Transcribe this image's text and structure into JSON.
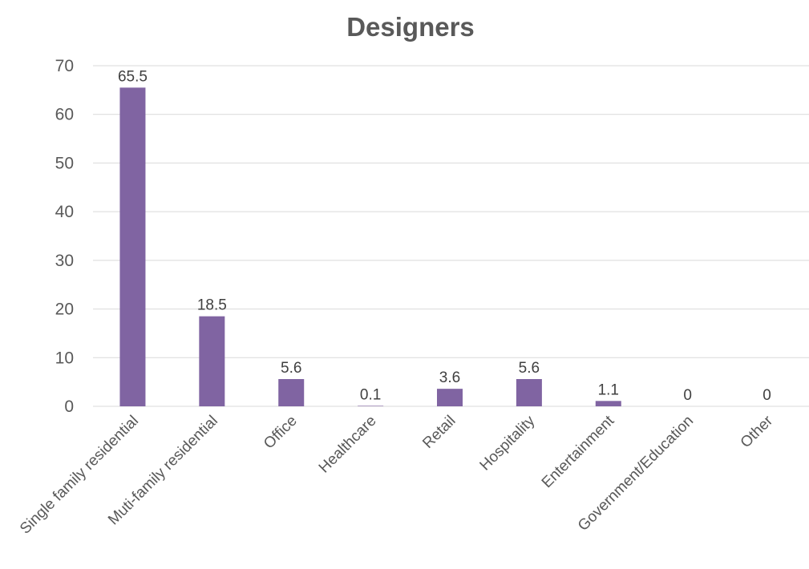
{
  "chart_data": {
    "type": "bar",
    "title": "Designers",
    "categories": [
      "Single family residential",
      "Muti-family residential",
      "Office",
      "Healthcare",
      "Retail",
      "Hospitality",
      "Entertainment",
      "Government/Education",
      "Other"
    ],
    "values": [
      65.5,
      18.5,
      5.6,
      0.1,
      3.6,
      5.6,
      1.1,
      0,
      0
    ],
    "data_labels": [
      "65.5",
      "18.5",
      "5.6",
      "0.1",
      "3.6",
      "5.6",
      "1.1",
      "0",
      "0"
    ],
    "ylim": [
      0,
      70
    ],
    "yticks": [
      "0",
      "10",
      "20",
      "30",
      "40",
      "50",
      "60",
      "70"
    ],
    "xlabel": "",
    "ylabel": "",
    "grid": true,
    "legend": "none",
    "bar_color": "#8064A2"
  }
}
